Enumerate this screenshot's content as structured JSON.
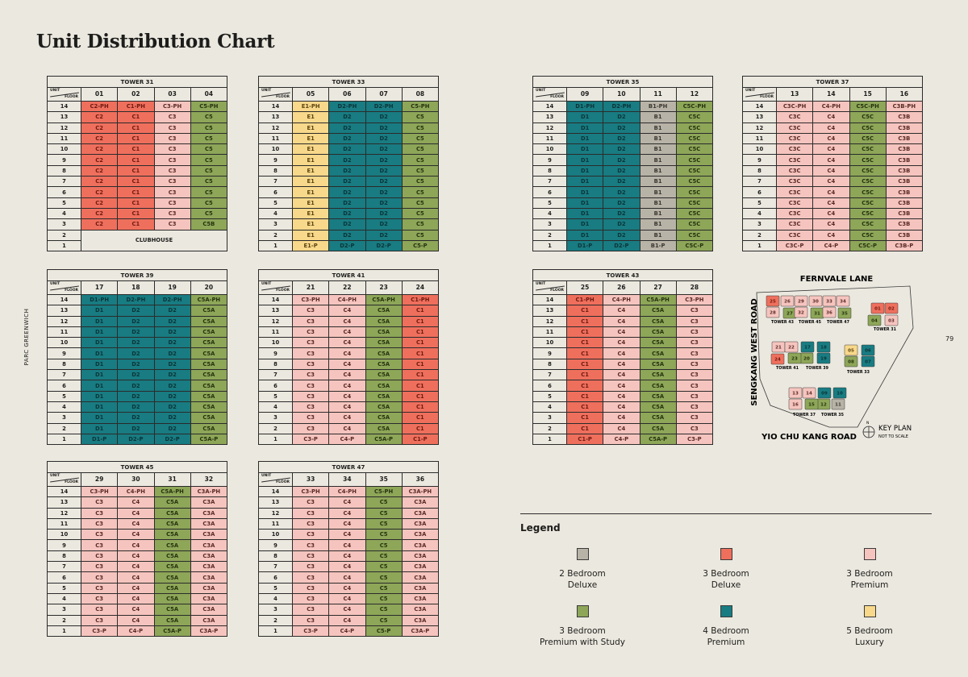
{
  "page": {
    "title": "Unit Distribution Chart",
    "side_label": "PARC GREENWICH",
    "page_number": "79"
  },
  "header_labels": {
    "unit": "UNIT",
    "floor": "FLOOR"
  },
  "categories": {
    "2bd": {
      "label": "2 Bedroom Deluxe",
      "color": "#b8b3a7",
      "text": "#3b3832"
    },
    "3bd": {
      "label": "3 Bedroom Deluxe",
      "color": "#ef6f5d",
      "text": "#6e1a10"
    },
    "3bp": {
      "label": "3 Bedroom Premium",
      "color": "#f6c4be",
      "text": "#5a2a26"
    },
    "3bps": {
      "label": "3 Bedroom Premium with Study",
      "color": "#8da658",
      "text": "#27330f"
    },
    "4bp": {
      "label": "4 Bedroom Premium",
      "color": "#187c82",
      "text": "#0b3538"
    },
    "5bl": {
      "label": "5 Bedroom Luxury",
      "color": "#f8d88a",
      "text": "#5a4310"
    }
  },
  "type_category": {
    "B1": "2bd",
    "C1": "3bd",
    "C2": "3bd",
    "C3": "3bp",
    "C3A": "3bp",
    "C3B": "3bp",
    "C3C": "3bp",
    "C4": "3bp",
    "C5": "3bps",
    "C5A": "3bps",
    "C5B": "3bps",
    "C5C": "3bps",
    "D1": "4bp",
    "D2": "4bp",
    "E1": "5bl"
  },
  "towers": [
    {
      "name": "TOWER 31",
      "units": [
        "01",
        "02",
        "03",
        "04"
      ],
      "merged_label": "CLUBHOUSE",
      "rows": [
        [
          "14",
          "C2-PH",
          "C1-PH",
          "C3-PH",
          "C5-PH"
        ],
        [
          "13",
          "C2",
          "C1",
          "C3",
          "C5"
        ],
        [
          "12",
          "C2",
          "C1",
          "C3",
          "C5"
        ],
        [
          "11",
          "C2",
          "C1",
          "C3",
          "C5"
        ],
        [
          "10",
          "C2",
          "C1",
          "C3",
          "C5"
        ],
        [
          "9",
          "C2",
          "C1",
          "C3",
          "C5"
        ],
        [
          "8",
          "C2",
          "C1",
          "C3",
          "C5"
        ],
        [
          "7",
          "C2",
          "C1",
          "C3",
          "C5"
        ],
        [
          "6",
          "C2",
          "C1",
          "C3",
          "C5"
        ],
        [
          "5",
          "C2",
          "C1",
          "C3",
          "C5"
        ],
        [
          "4",
          "C2",
          "C1",
          "C3",
          "C5"
        ],
        [
          "3",
          "C2",
          "C1",
          "C3",
          "C5B"
        ],
        [
          "2"
        ],
        [
          "1"
        ]
      ]
    },
    {
      "name": "TOWER 33",
      "units": [
        "05",
        "06",
        "07",
        "08"
      ],
      "rows": [
        [
          "14",
          "E1-PH",
          "D2-PH",
          "D2-PH",
          "C5-PH"
        ],
        [
          "13",
          "E1",
          "D2",
          "D2",
          "C5"
        ],
        [
          "12",
          "E1",
          "D2",
          "D2",
          "C5"
        ],
        [
          "11",
          "E1",
          "D2",
          "D2",
          "C5"
        ],
        [
          "10",
          "E1",
          "D2",
          "D2",
          "C5"
        ],
        [
          "9",
          "E1",
          "D2",
          "D2",
          "C5"
        ],
        [
          "8",
          "E1",
          "D2",
          "D2",
          "C5"
        ],
        [
          "7",
          "E1",
          "D2",
          "D2",
          "C5"
        ],
        [
          "6",
          "E1",
          "D2",
          "D2",
          "C5"
        ],
        [
          "5",
          "E1",
          "D2",
          "D2",
          "C5"
        ],
        [
          "4",
          "E1",
          "D2",
          "D2",
          "C5"
        ],
        [
          "3",
          "E1",
          "D2",
          "D2",
          "C5"
        ],
        [
          "2",
          "E1",
          "D2",
          "D2",
          "C5"
        ],
        [
          "1",
          "E1-P",
          "D2-P",
          "D2-P",
          "C5-P"
        ]
      ]
    },
    {
      "name": "TOWER 35",
      "units": [
        "09",
        "10",
        "11",
        "12"
      ],
      "rows": [
        [
          "14",
          "D1-PH",
          "D2-PH",
          "B1-PH",
          "C5C-PH"
        ],
        [
          "13",
          "D1",
          "D2",
          "B1",
          "C5C"
        ],
        [
          "12",
          "D1",
          "D2",
          "B1",
          "C5C"
        ],
        [
          "11",
          "D1",
          "D2",
          "B1",
          "C5C"
        ],
        [
          "10",
          "D1",
          "D2",
          "B1",
          "C5C"
        ],
        [
          "9",
          "D1",
          "D2",
          "B1",
          "C5C"
        ],
        [
          "8",
          "D1",
          "D2",
          "B1",
          "C5C"
        ],
        [
          "7",
          "D1",
          "D2",
          "B1",
          "C5C"
        ],
        [
          "6",
          "D1",
          "D2",
          "B1",
          "C5C"
        ],
        [
          "5",
          "D1",
          "D2",
          "B1",
          "C5C"
        ],
        [
          "4",
          "D1",
          "D2",
          "B1",
          "C5C"
        ],
        [
          "3",
          "D1",
          "D2",
          "B1",
          "C5C"
        ],
        [
          "2",
          "D1",
          "D2",
          "B1",
          "C5C"
        ],
        [
          "1",
          "D1-P",
          "D2-P",
          "B1-P",
          "C5C-P"
        ]
      ]
    },
    {
      "name": "TOWER 37",
      "units": [
        "13",
        "14",
        "15",
        "16"
      ],
      "rows": [
        [
          "14",
          "C3C-PH",
          "C4-PH",
          "C5C-PH",
          "C3B-PH"
        ],
        [
          "13",
          "C3C",
          "C4",
          "C5C",
          "C3B"
        ],
        [
          "12",
          "C3C",
          "C4",
          "C5C",
          "C3B"
        ],
        [
          "11",
          "C3C",
          "C4",
          "C5C",
          "C3B"
        ],
        [
          "10",
          "C3C",
          "C4",
          "C5C",
          "C3B"
        ],
        [
          "9",
          "C3C",
          "C4",
          "C5C",
          "C3B"
        ],
        [
          "8",
          "C3C",
          "C4",
          "C5C",
          "C3B"
        ],
        [
          "7",
          "C3C",
          "C4",
          "C5C",
          "C3B"
        ],
        [
          "6",
          "C3C",
          "C4",
          "C5C",
          "C3B"
        ],
        [
          "5",
          "C3C",
          "C4",
          "C5C",
          "C3B"
        ],
        [
          "4",
          "C3C",
          "C4",
          "C5C",
          "C3B"
        ],
        [
          "3",
          "C3C",
          "C4",
          "C5C",
          "C3B"
        ],
        [
          "2",
          "C3C",
          "C4",
          "C5C",
          "C3B"
        ],
        [
          "1",
          "C3C-P",
          "C4-P",
          "C5C-P",
          "C3B-P"
        ]
      ]
    },
    {
      "name": "TOWER 39",
      "units": [
        "17",
        "18",
        "19",
        "20"
      ],
      "rows": [
        [
          "14",
          "D1-PH",
          "D2-PH",
          "D2-PH",
          "C5A-PH"
        ],
        [
          "13",
          "D1",
          "D2",
          "D2",
          "C5A"
        ],
        [
          "12",
          "D1",
          "D2",
          "D2",
          "C5A"
        ],
        [
          "11",
          "D1",
          "D2",
          "D2",
          "C5A"
        ],
        [
          "10",
          "D1",
          "D2",
          "D2",
          "C5A"
        ],
        [
          "9",
          "D1",
          "D2",
          "D2",
          "C5A"
        ],
        [
          "8",
          "D1",
          "D2",
          "D2",
          "C5A"
        ],
        [
          "7",
          "D1",
          "D2",
          "D2",
          "C5A"
        ],
        [
          "6",
          "D1",
          "D2",
          "D2",
          "C5A"
        ],
        [
          "5",
          "D1",
          "D2",
          "D2",
          "C5A"
        ],
        [
          "4",
          "D1",
          "D2",
          "D2",
          "C5A"
        ],
        [
          "3",
          "D1",
          "D2",
          "D2",
          "C5A"
        ],
        [
          "2",
          "D1",
          "D2",
          "D2",
          "C5A"
        ],
        [
          "1",
          "D1-P",
          "D2-P",
          "D2-P",
          "C5A-P"
        ]
      ]
    },
    {
      "name": "TOWER 41",
      "units": [
        "21",
        "22",
        "23",
        "24"
      ],
      "rows": [
        [
          "14",
          "C3-PH",
          "C4-PH",
          "C5A-PH",
          "C1-PH"
        ],
        [
          "13",
          "C3",
          "C4",
          "C5A",
          "C1"
        ],
        [
          "12",
          "C3",
          "C4",
          "C5A",
          "C1"
        ],
        [
          "11",
          "C3",
          "C4",
          "C5A",
          "C1"
        ],
        [
          "10",
          "C3",
          "C4",
          "C5A",
          "C1"
        ],
        [
          "9",
          "C3",
          "C4",
          "C5A",
          "C1"
        ],
        [
          "8",
          "C3",
          "C4",
          "C5A",
          "C1"
        ],
        [
          "7",
          "C3",
          "C4",
          "C5A",
          "C1"
        ],
        [
          "6",
          "C3",
          "C4",
          "C5A",
          "C1"
        ],
        [
          "5",
          "C3",
          "C4",
          "C5A",
          "C1"
        ],
        [
          "4",
          "C3",
          "C4",
          "C5A",
          "C1"
        ],
        [
          "3",
          "C3",
          "C4",
          "C5A",
          "C1"
        ],
        [
          "2",
          "C3",
          "C4",
          "C5A",
          "C1"
        ],
        [
          "1",
          "C3-P",
          "C4-P",
          "C5A-P",
          "C1-P"
        ]
      ]
    },
    {
      "name": "TOWER 43",
      "units": [
        "25",
        "26",
        "27",
        "28"
      ],
      "rows": [
        [
          "14",
          "C1-PH",
          "C4-PH",
          "C5A-PH",
          "C3-PH"
        ],
        [
          "13",
          "C1",
          "C4",
          "C5A",
          "C3"
        ],
        [
          "12",
          "C1",
          "C4",
          "C5A",
          "C3"
        ],
        [
          "11",
          "C1",
          "C4",
          "C5A",
          "C3"
        ],
        [
          "10",
          "C1",
          "C4",
          "C5A",
          "C3"
        ],
        [
          "9",
          "C1",
          "C4",
          "C5A",
          "C3"
        ],
        [
          "8",
          "C1",
          "C4",
          "C5A",
          "C3"
        ],
        [
          "7",
          "C1",
          "C4",
          "C5A",
          "C3"
        ],
        [
          "6",
          "C1",
          "C4",
          "C5A",
          "C3"
        ],
        [
          "5",
          "C1",
          "C4",
          "C5A",
          "C3"
        ],
        [
          "4",
          "C1",
          "C4",
          "C5A",
          "C3"
        ],
        [
          "3",
          "C1",
          "C4",
          "C5A",
          "C3"
        ],
        [
          "2",
          "C1",
          "C4",
          "C5A",
          "C3"
        ],
        [
          "1",
          "C1-P",
          "C4-P",
          "C5A-P",
          "C3-P"
        ]
      ]
    },
    {
      "name": "TOWER 45",
      "units": [
        "29",
        "30",
        "31",
        "32"
      ],
      "rows": [
        [
          "14",
          "C3-PH",
          "C4-PH",
          "C5A-PH",
          "C3A-PH"
        ],
        [
          "13",
          "C3",
          "C4",
          "C5A",
          "C3A"
        ],
        [
          "12",
          "C3",
          "C4",
          "C5A",
          "C3A"
        ],
        [
          "11",
          "C3",
          "C4",
          "C5A",
          "C3A"
        ],
        [
          "10",
          "C3",
          "C4",
          "C5A",
          "C3A"
        ],
        [
          "9",
          "C3",
          "C4",
          "C5A",
          "C3A"
        ],
        [
          "8",
          "C3",
          "C4",
          "C5A",
          "C3A"
        ],
        [
          "7",
          "C3",
          "C4",
          "C5A",
          "C3A"
        ],
        [
          "6",
          "C3",
          "C4",
          "C5A",
          "C3A"
        ],
        [
          "5",
          "C3",
          "C4",
          "C5A",
          "C3A"
        ],
        [
          "4",
          "C3",
          "C4",
          "C5A",
          "C3A"
        ],
        [
          "3",
          "C3",
          "C4",
          "C5A",
          "C3A"
        ],
        [
          "2",
          "C3",
          "C4",
          "C5A",
          "C3A"
        ],
        [
          "1",
          "C3-P",
          "C4-P",
          "C5A-P",
          "C3A-P"
        ]
      ]
    },
    {
      "name": "TOWER 47",
      "units": [
        "33",
        "34",
        "35",
        "36"
      ],
      "rows": [
        [
          "14",
          "C3-PH",
          "C4-PH",
          "C5-PH",
          "C3A-PH"
        ],
        [
          "13",
          "C3",
          "C4",
          "C5",
          "C3A"
        ],
        [
          "12",
          "C3",
          "C4",
          "C5",
          "C3A"
        ],
        [
          "11",
          "C3",
          "C4",
          "C5",
          "C3A"
        ],
        [
          "10",
          "C3",
          "C4",
          "C5",
          "C3A"
        ],
        [
          "9",
          "C3",
          "C4",
          "C5",
          "C3A"
        ],
        [
          "8",
          "C3",
          "C4",
          "C5",
          "C3A"
        ],
        [
          "7",
          "C3",
          "C4",
          "C5",
          "C3A"
        ],
        [
          "6",
          "C3",
          "C4",
          "C5",
          "C3A"
        ],
        [
          "5",
          "C3",
          "C4",
          "C5",
          "C3A"
        ],
        [
          "4",
          "C3",
          "C4",
          "C5",
          "C3A"
        ],
        [
          "3",
          "C3",
          "C4",
          "C5",
          "C3A"
        ],
        [
          "2",
          "C3",
          "C4",
          "C5",
          "C3A"
        ],
        [
          "1",
          "C3-P",
          "C4-P",
          "C5-P",
          "C3A-P"
        ]
      ]
    }
  ],
  "key_plan": {
    "roads": {
      "north": "FERNVALE LANE",
      "west": "SENGKANG WEST ROAD",
      "south": "YIO CHU KANG ROAD"
    },
    "title": "KEY PLAN",
    "subtitle": "NOT TO SCALE",
    "north_label": "N",
    "tower_labels": [
      "TOWER 43",
      "TOWER 45",
      "TOWER 47",
      "TOWER 31",
      "TOWER 41",
      "TOWER 39",
      "TOWER 33",
      "TOWER 37",
      "TOWER 35"
    ],
    "units": {
      "25": "3bd",
      "26": "3bp",
      "28": "3bp",
      "27": "3bps",
      "29": "3bp",
      "30": "3bp",
      "32": "3bp",
      "31": "3bps",
      "33": "3bp",
      "34": "3bp",
      "36": "3bp",
      "35": "3bps",
      "01": "3bd",
      "02": "3bd",
      "04": "3bps",
      "03": "3bp",
      "21": "3bp",
      "22": "3bp",
      "24": "3bd",
      "23": "3bps",
      "17": "4bp",
      "18": "4bp",
      "20": "3bps",
      "19": "4bp",
      "05": "5bl",
      "06": "4bp",
      "08": "3bps",
      "07": "4bp",
      "13": "3bp",
      "14": "3bp",
      "16": "3bp",
      "15": "3bps",
      "09": "4bp",
      "10": "4bp",
      "12": "3bps",
      "11": "2bd"
    }
  },
  "legend": {
    "title": "Legend",
    "items": [
      {
        "key": "2bd",
        "line1": "2 Bedroom",
        "line2": "Deluxe"
      },
      {
        "key": "3bd",
        "line1": "3 Bedroom",
        "line2": "Deluxe"
      },
      {
        "key": "3bp",
        "line1": "3 Bedroom",
        "line2": "Premium"
      },
      {
        "key": "3bps",
        "line1": "3 Bedroom",
        "line2": "Premium with Study"
      },
      {
        "key": "4bp",
        "line1": "4 Bedroom",
        "line2": "Premium"
      },
      {
        "key": "5bl",
        "line1": "5 Bedroom",
        "line2": "Luxury"
      }
    ]
  }
}
